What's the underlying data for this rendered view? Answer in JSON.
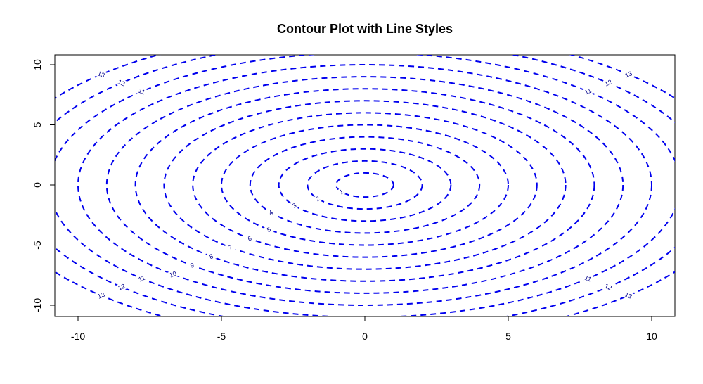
{
  "chart_data": {
    "type": "contour",
    "title": "Contour Plot with Line Styles",
    "xlabel": "",
    "ylabel": "",
    "xlim": [
      -10,
      10
    ],
    "ylim": [
      -10,
      10
    ],
    "x_ticks": [
      "-10",
      "-5",
      "0",
      "5",
      "10"
    ],
    "y_ticks": [
      "-10",
      "-5",
      "0",
      "5",
      "10"
    ],
    "line_color": "#0000ee",
    "label_color": "#00008b",
    "line_style": "dashed",
    "grid": false,
    "levels": [
      1,
      2,
      3,
      4,
      5,
      6,
      7,
      8,
      9,
      10,
      11,
      12,
      13
    ]
  }
}
